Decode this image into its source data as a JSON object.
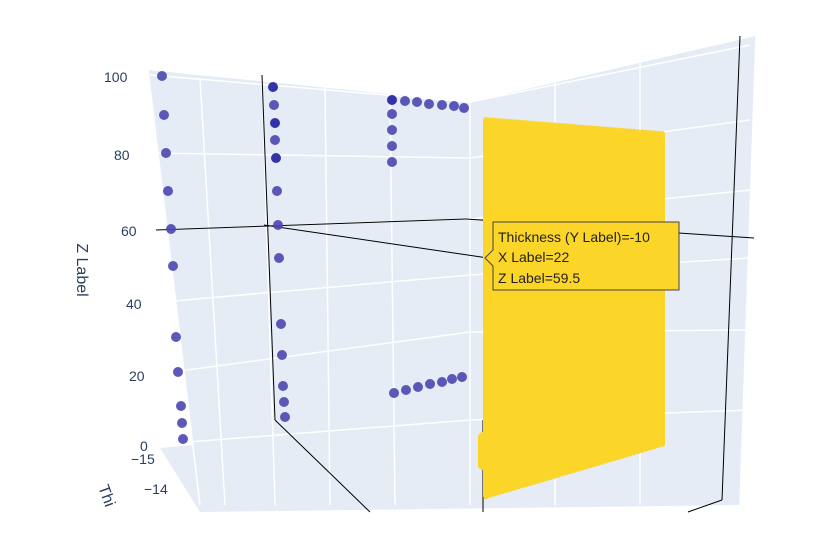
{
  "chart_data": {
    "type": "scatter3d",
    "axes": {
      "z": {
        "label": "Z Label",
        "ticks": [
          0,
          20,
          40,
          60,
          80,
          100
        ]
      },
      "y": {
        "label": "Thi",
        "ticks": [
          -15,
          -14
        ]
      },
      "x": {
        "label": "X Label"
      }
    },
    "colors": {
      "background": "#e5ecf6",
      "grid": "#ffffff",
      "points_dark": "#1f1f9e",
      "points": "#4a47b0",
      "surface": "#fbd528",
      "spike": "#000000"
    },
    "hover": {
      "lines": [
        "Thickness (Y Label)=-10",
        "X Label=22",
        "Z Label=59.5"
      ]
    }
  }
}
